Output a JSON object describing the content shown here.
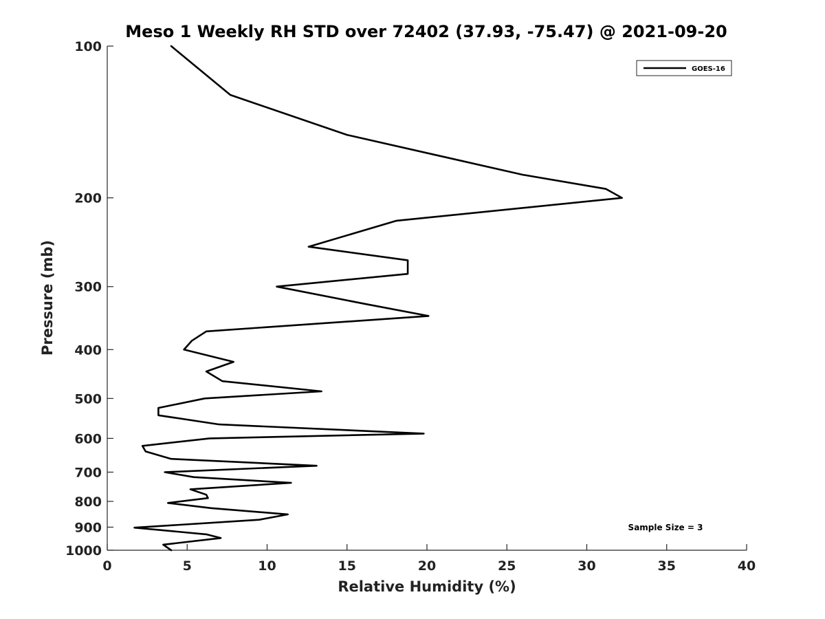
{
  "chart_data": {
    "type": "line",
    "title": "Meso 1 Weekly RH STD over 72402 (37.93, -75.47) @ 2021-09-20",
    "xlabel": "Relative Humidity (%)",
    "ylabel": "Pressure (mb)",
    "xlim": [
      0,
      40
    ],
    "ylim": [
      100,
      1000
    ],
    "yscale": "log",
    "yreversed": true,
    "x_ticks": [
      0,
      5,
      10,
      15,
      20,
      25,
      30,
      35,
      40
    ],
    "y_ticks": [
      100,
      200,
      300,
      400,
      500,
      600,
      700,
      800,
      900,
      1000
    ],
    "grid": false,
    "legend_position": "top-right",
    "annotation": "Sample Size = 3",
    "series": [
      {
        "name": "GOES-16",
        "color": "#000000",
        "points": [
          [
            4.0,
            100
          ],
          [
            7.7,
            125
          ],
          [
            15.0,
            150
          ],
          [
            26.0,
            180
          ],
          [
            31.2,
            192
          ],
          [
            32.2,
            200
          ],
          [
            18.1,
            222
          ],
          [
            12.6,
            250
          ],
          [
            18.8,
            266
          ],
          [
            18.8,
            283
          ],
          [
            10.6,
            300
          ],
          [
            16.2,
            325
          ],
          [
            20.1,
            343
          ],
          [
            6.2,
            368
          ],
          [
            5.3,
            384
          ],
          [
            4.8,
            400
          ],
          [
            7.9,
            423
          ],
          [
            6.2,
            442
          ],
          [
            7.2,
            462
          ],
          [
            13.4,
            484
          ],
          [
            6.1,
            500
          ],
          [
            3.2,
            522
          ],
          [
            3.2,
            540
          ],
          [
            7.0,
            563
          ],
          [
            19.8,
            587
          ],
          [
            6.4,
            600
          ],
          [
            2.2,
            621
          ],
          [
            2.4,
            637
          ],
          [
            4.0,
            659
          ],
          [
            13.1,
            680
          ],
          [
            3.6,
            700
          ],
          [
            5.4,
            716
          ],
          [
            11.5,
            735
          ],
          [
            5.2,
            757
          ],
          [
            6.2,
            776
          ],
          [
            6.3,
            788
          ],
          [
            3.8,
            806
          ],
          [
            6.5,
            825
          ],
          [
            11.3,
            849
          ],
          [
            9.5,
            870
          ],
          [
            1.7,
            902
          ],
          [
            6.2,
            930
          ],
          [
            7.1,
            946
          ],
          [
            3.5,
            975
          ],
          [
            4.0,
            1000
          ]
        ]
      }
    ]
  }
}
